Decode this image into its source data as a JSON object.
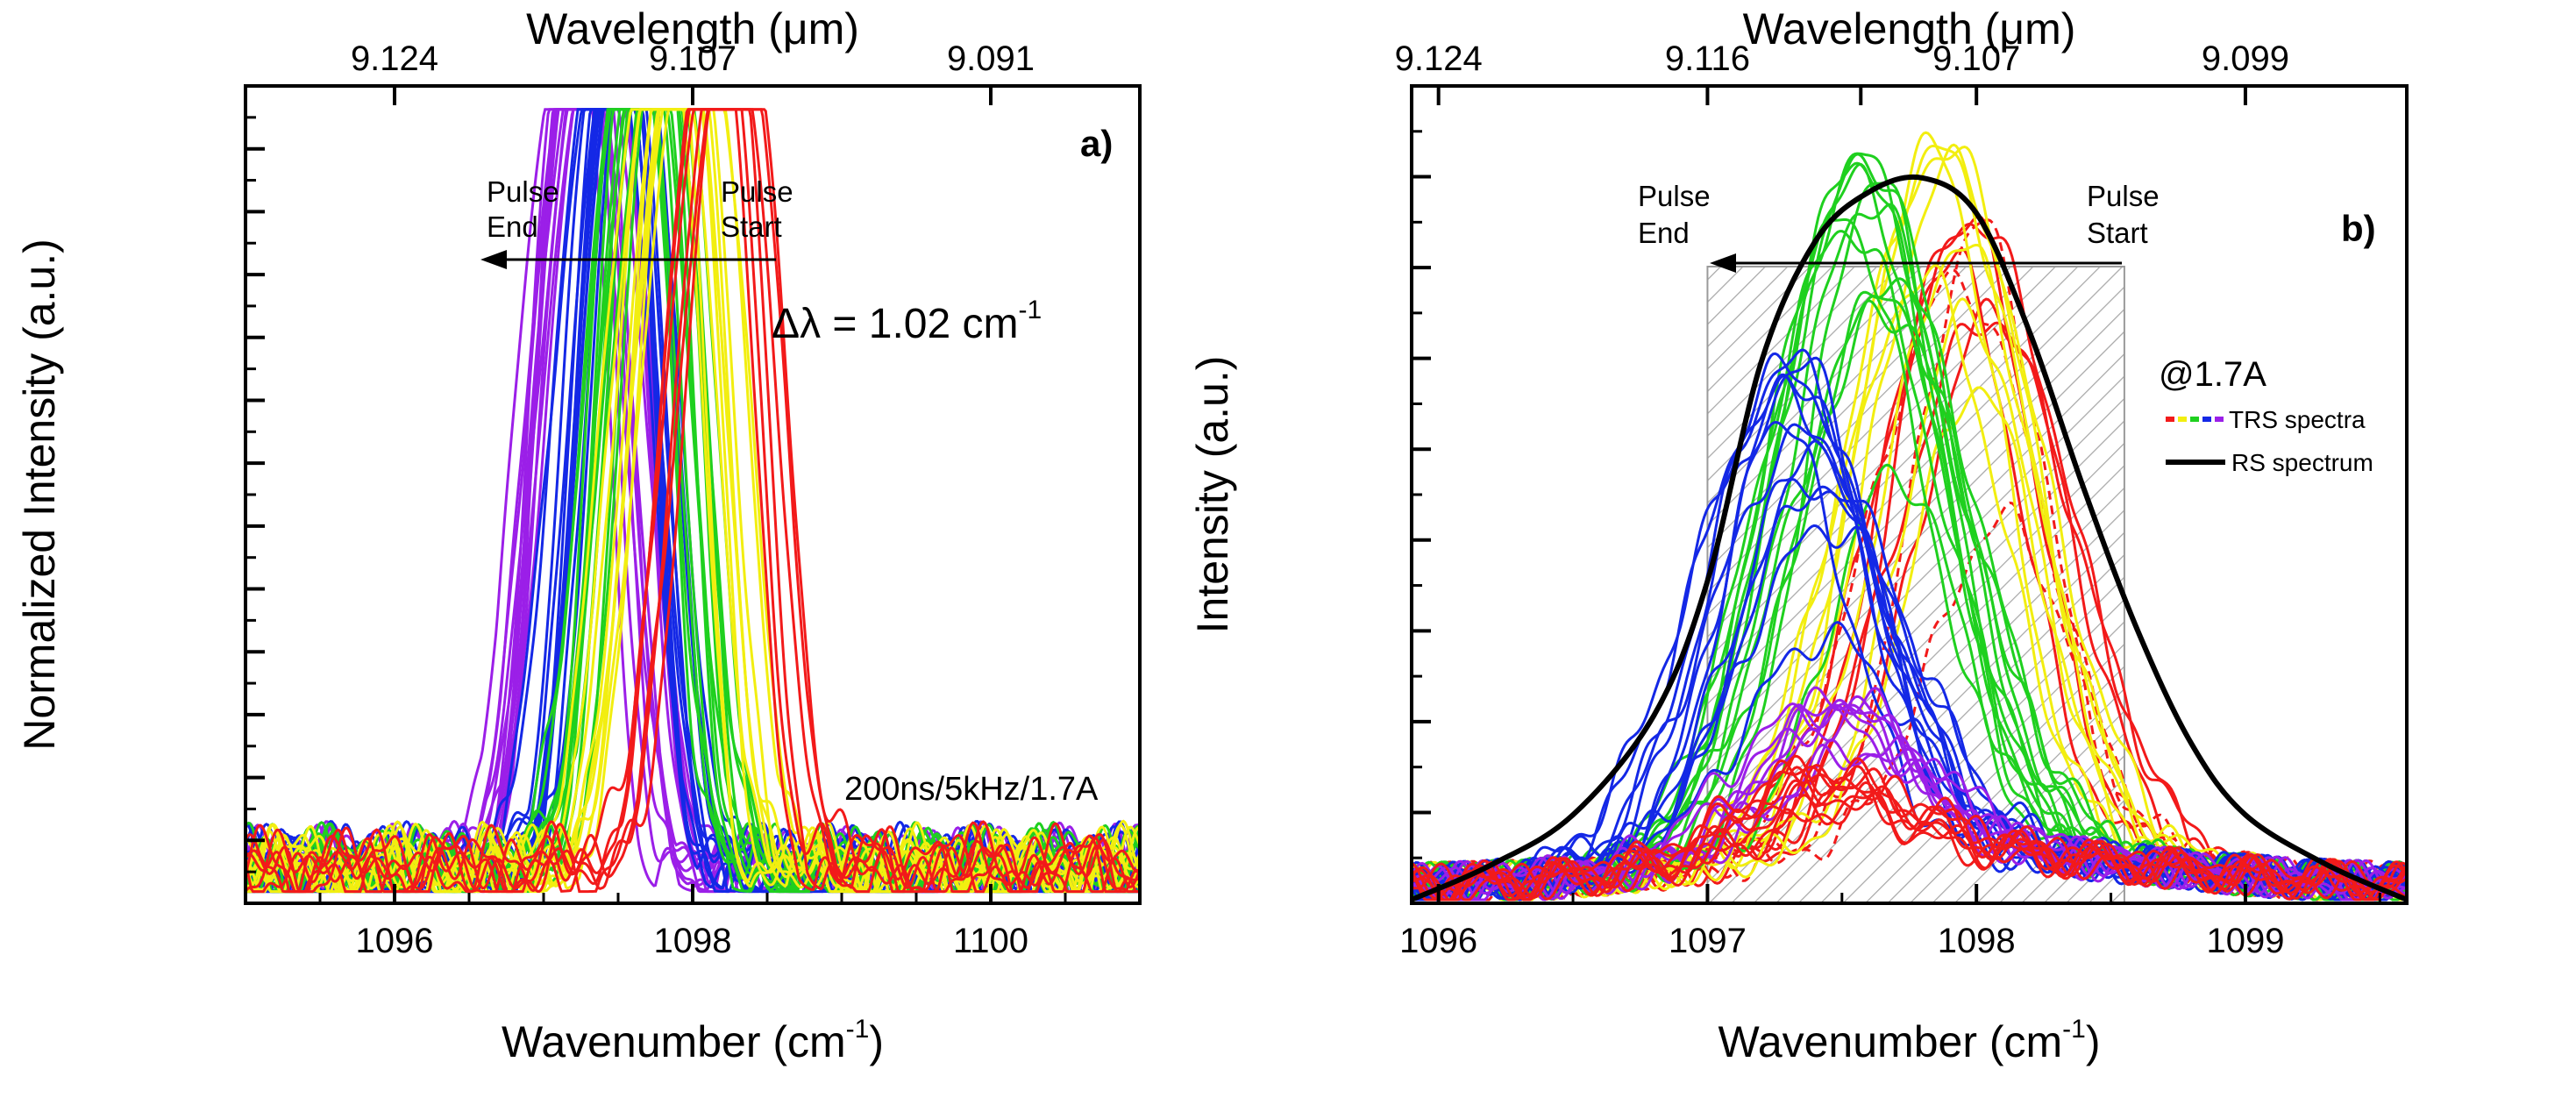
{
  "chart_data": [
    {
      "type": "line",
      "panel_label": "a)",
      "title": "",
      "xlabel": "Wavenumber (cm",
      "xlabel_sup": "-1",
      "xlabel_end": ")",
      "ylabel": "Normalized Intensity (a.u.)",
      "top_xlabel_pre": "Wavelength (",
      "top_xlabel_mu": "μ",
      "top_xlabel_post": "m)",
      "xlim": [
        1095,
        1101
      ],
      "ylim": [
        -0.015,
        1.03
      ],
      "x_ticks": [
        1096,
        1098,
        1100
      ],
      "x_tick_labels": [
        "1096",
        "1098",
        "1100"
      ],
      "top_ticks_wavenumber": [
        1096,
        1098,
        1100
      ],
      "top_tick_labels": [
        "9.124",
        "9.107",
        "9.091"
      ],
      "y_tick_labels_shown": false,
      "annotations": {
        "pulse_end": [
          "Pulse",
          "End"
        ],
        "pulse_start": [
          "Pulse",
          "Start"
        ],
        "delta_prefix": "Δλ = 1.02 cm",
        "delta_sup": "-1",
        "conditions": "200ns/5kHz/1.7A"
      },
      "series_groups": [
        {
          "color": "#9b1fe8",
          "name": "violet",
          "peak_range": [
            1097.18,
            1097.42
          ],
          "count": 12
        },
        {
          "color": "#1428e6",
          "name": "blue",
          "peak_range": [
            1097.42,
            1097.62
          ],
          "count": 12
        },
        {
          "color": "#1fd01f",
          "name": "green",
          "peak_range": [
            1097.58,
            1097.85
          ],
          "count": 12
        },
        {
          "color": "#f2ee10",
          "name": "yellow",
          "peak_range": [
            1097.8,
            1098.05
          ],
          "count": 10
        },
        {
          "color": "#f21a1a",
          "name": "red",
          "peak_range": [
            1098.15,
            1098.32
          ],
          "count": 6
        }
      ]
    },
    {
      "type": "line",
      "panel_label": "b)",
      "title": "",
      "xlabel": "Wavenumber (cm",
      "xlabel_sup": "-1",
      "xlabel_end": ")",
      "ylabel": "Intensity (a.u.)",
      "top_xlabel_pre": "Wavelength (",
      "top_xlabel_mu": "μ",
      "top_xlabel_post": "m)",
      "xlim": [
        1095.9,
        1099.6
      ],
      "ylim": [
        -0.005,
        1.15
      ],
      "x_ticks": [
        1096,
        1097,
        1098,
        1099
      ],
      "x_tick_labels": [
        "1096",
        "1097",
        "1098",
        "1099"
      ],
      "top_ticks_wavenumber": [
        1096,
        1097,
        1097.57,
        1098,
        1099
      ],
      "top_tick_labels": [
        "9.124",
        "9.116",
        "9.107",
        "9.099"
      ],
      "top_tick_label_at": [
        1096,
        1097,
        1098,
        1099
      ],
      "y_tick_labels_shown": false,
      "hatched_region": [
        1097.0,
        1098.55
      ],
      "annotations": {
        "pulse_end": [
          "Pulse",
          "End"
        ],
        "pulse_start": [
          "Pulse",
          "Start"
        ],
        "current": "@1.7A"
      },
      "legend": {
        "position": "right",
        "entries": [
          {
            "label": "TRS spectra",
            "style": "rainbow-dashed"
          },
          {
            "label": "RS spectrum",
            "style": "solid",
            "color": "#000000"
          }
        ]
      },
      "rs_spectrum": {
        "color": "#000000",
        "x": [
          1095.9,
          1096.2,
          1096.5,
          1096.8,
          1097.0,
          1097.2,
          1097.4,
          1097.6,
          1097.8,
          1098.0,
          1098.2,
          1098.4,
          1098.6,
          1098.8,
          1099.0,
          1099.3,
          1099.6
        ],
        "y": [
          0.0,
          0.05,
          0.12,
          0.26,
          0.45,
          0.76,
          0.93,
          1.0,
          1.02,
          0.97,
          0.8,
          0.58,
          0.38,
          0.22,
          0.12,
          0.05,
          0.0
        ]
      },
      "series_groups": [
        {
          "color": "#f21a1a",
          "name": "red-early",
          "peak_range": [
            1097.9,
            1098.1
          ],
          "count": 8,
          "amp_range": [
            0.35,
            0.9
          ]
        },
        {
          "color": "#f2ee10",
          "name": "yellow",
          "peak_range": [
            1097.8,
            1098.0
          ],
          "count": 8,
          "amp_range": [
            0.55,
            1.0
          ]
        },
        {
          "color": "#1fd01f",
          "name": "green",
          "peak_range": [
            1097.5,
            1097.7
          ],
          "count": 12,
          "amp_range": [
            0.45,
            0.98
          ]
        },
        {
          "color": "#1428e6",
          "name": "blue",
          "peak_range": [
            1097.25,
            1097.45
          ],
          "count": 12,
          "amp_range": [
            0.18,
            0.7
          ]
        },
        {
          "color": "#9b1fe8",
          "name": "violet",
          "peak_range": [
            1097.4,
            1097.6
          ],
          "count": 8,
          "amp_range": [
            0.08,
            0.22
          ]
        },
        {
          "color": "#f21a1a",
          "name": "red-late",
          "peak_range": [
            1097.3,
            1097.6
          ],
          "count": 8,
          "amp_range": [
            0.05,
            0.12
          ]
        }
      ]
    }
  ]
}
